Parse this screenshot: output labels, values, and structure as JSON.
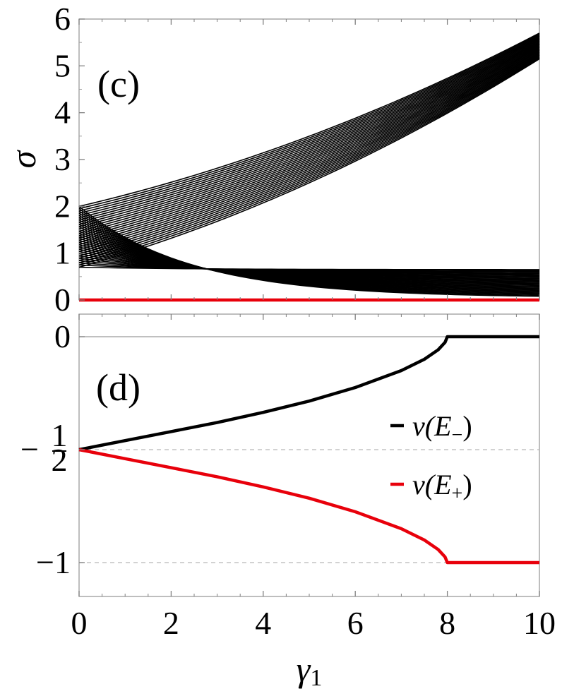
{
  "colors": {
    "black": "#000000",
    "red": "#e8000b",
    "frame": "#9a9a9a",
    "dashed": "#b8b8b8"
  },
  "x_ticks": [
    "0",
    "2",
    "4",
    "6",
    "8",
    "10"
  ],
  "x_label": "γ",
  "x_label_sub": "1",
  "chart_data": [
    {
      "panel": "(c)",
      "type": "line",
      "ylabel": "σ",
      "xlim": [
        0,
        10
      ],
      "ylim": [
        0,
        6
      ],
      "y_ticks": [
        "0",
        "1",
        "2",
        "3",
        "4",
        "5",
        "6"
      ],
      "fan_rising": {
        "count": 28,
        "start": [
          0.7,
          2.0
        ],
        "end_at_x10": [
          5.15,
          5.7
        ]
      },
      "fan_falling": {
        "count": 28,
        "start": [
          2.0,
          0.7
        ],
        "end_at_x10": [
          0.08,
          0.65
        ]
      },
      "series": [
        {
          "name": "",
          "color": "red",
          "x": [
            0,
            10
          ],
          "y": [
            0,
            0
          ]
        }
      ]
    },
    {
      "panel": "(d)",
      "type": "line",
      "xlim": [
        0,
        10
      ],
      "ylim": [
        -1.15,
        0.1
      ],
      "y_ticks": [
        {
          "value": 0,
          "label": "0"
        },
        {
          "value": -0.5,
          "label": "−",
          "frac_num": "1",
          "frac_den": "2"
        },
        {
          "value": -1,
          "label": "−1"
        }
      ],
      "reference_lines": [
        0,
        -0.5,
        -1
      ],
      "series": [
        {
          "name": "ν(E−)",
          "legend_main": "ν(E",
          "legend_sub": "−",
          "legend_close": ")",
          "color": "black",
          "x": [
            0,
            1,
            2,
            3,
            4,
            5,
            6,
            7,
            7.5,
            7.8,
            7.95,
            8,
            10
          ],
          "y": [
            -0.5,
            -0.46,
            -0.42,
            -0.38,
            -0.335,
            -0.285,
            -0.225,
            -0.15,
            -0.1,
            -0.058,
            -0.025,
            0,
            0
          ]
        },
        {
          "name": "ν(E+)",
          "legend_main": "ν(E",
          "legend_sub": "+",
          "legend_close": ")",
          "color": "red",
          "x": [
            0,
            1,
            2,
            3,
            4,
            5,
            6,
            7,
            7.5,
            7.8,
            7.95,
            8,
            10
          ],
          "y": [
            -0.5,
            -0.54,
            -0.58,
            -0.62,
            -0.665,
            -0.715,
            -0.775,
            -0.85,
            -0.9,
            -0.942,
            -0.975,
            -1,
            -1
          ]
        }
      ]
    }
  ]
}
